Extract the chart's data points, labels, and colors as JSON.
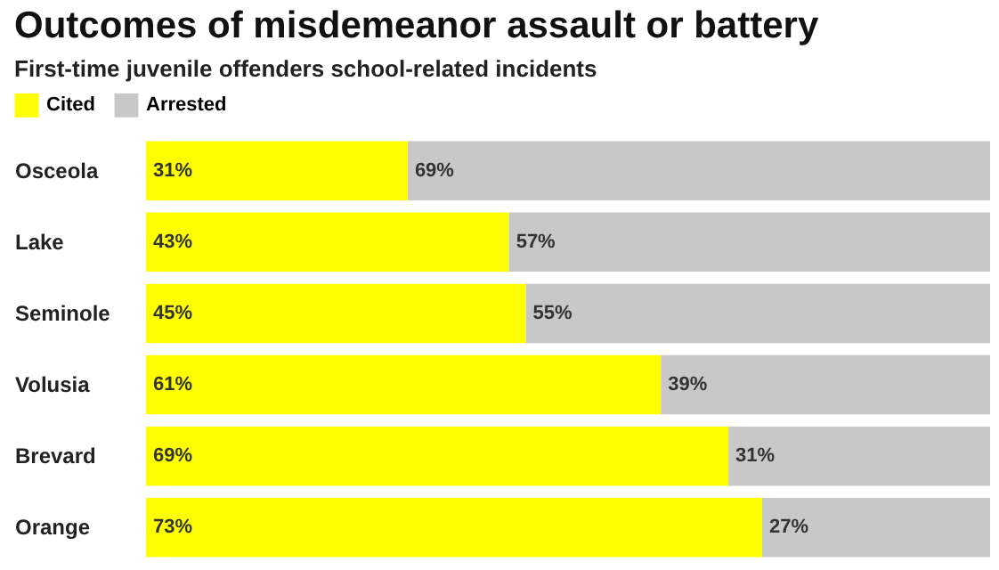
{
  "chart_data": {
    "type": "bar",
    "orientation": "horizontal",
    "stacked": true,
    "title": "Outcomes of misdemeanor assault or battery",
    "subtitle": "First-time juvenile offenders school-related incidents",
    "categories": [
      "Osceola",
      "Lake",
      "Seminole",
      "Volusia",
      "Brevard",
      "Orange"
    ],
    "series": [
      {
        "name": "Cited",
        "color": "#ffff00",
        "values": [
          31,
          43,
          45,
          61,
          69,
          73
        ],
        "value_labels": [
          "31%",
          "43%",
          "45%",
          "61%",
          "69%",
          "73%"
        ]
      },
      {
        "name": "Arrested",
        "color": "#c8c8c8",
        "values": [
          69,
          57,
          55,
          39,
          31,
          27
        ],
        "value_labels": [
          "69%",
          "57%",
          "55%",
          "39%",
          "31%",
          "27%"
        ]
      }
    ],
    "xlim": [
      0,
      100
    ],
    "tick_labels": "y",
    "legend": "top left"
  }
}
